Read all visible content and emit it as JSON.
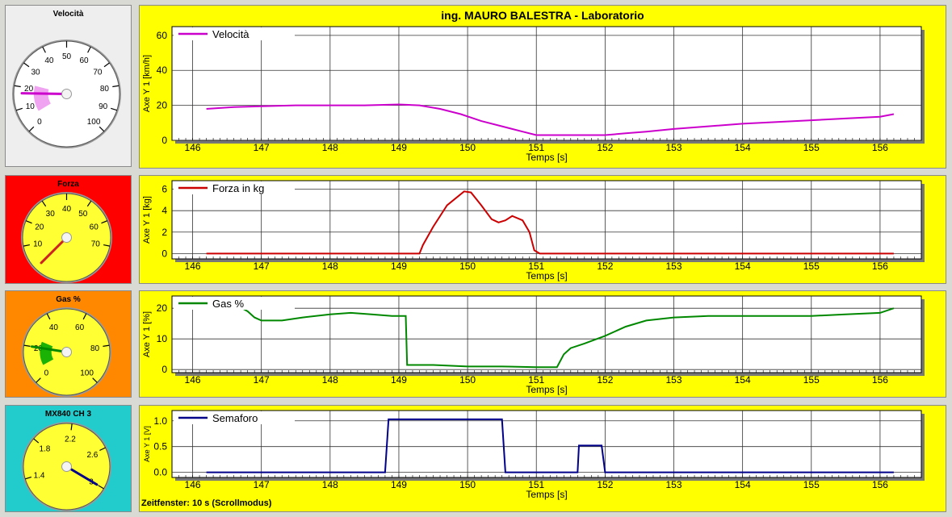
{
  "window": {
    "title": "ing. MAURO BALESTRA - Laboratorio",
    "footer": "Zeitfenster: 10 s (Scrollmodus)"
  },
  "gauges": [
    {
      "label": "Velocità",
      "bg": "#eeeeee",
      "face": "#ffffff",
      "ticks": [
        "0",
        "10",
        "20",
        "30",
        "40",
        "50",
        "60",
        "70",
        "80",
        "90",
        "100"
      ],
      "min": 0,
      "max": 100,
      "value": 17,
      "needle": "#cc00cc",
      "arc": "#ee99ee"
    },
    {
      "label": "Forza",
      "bg": "#ff0000",
      "face": "#ffff33",
      "ticks": [
        "10",
        "20",
        "30",
        "40",
        "50",
        "60",
        "70"
      ],
      "min": 0,
      "max": 80,
      "value": 0,
      "needle": "#cc2222",
      "arc": ""
    },
    {
      "label": "Gas %",
      "bg": "#ff8800",
      "face": "#ffff33",
      "ticks": [
        "0",
        "20",
        "40",
        "60",
        "80",
        "100"
      ],
      "min": 0,
      "max": 100,
      "value": 20,
      "needle": "#008800",
      "arc": "#00aa00"
    },
    {
      "label": "MX840 CH 3",
      "bg": "#22cccc",
      "face": "#ffff33",
      "ticks": [
        "1.4",
        "1.8",
        "2.2",
        "2.6",
        "3"
      ],
      "min": 1.2,
      "max": 3.1,
      "value": 3.0,
      "needle": "#000088",
      "arc": ""
    }
  ],
  "chart_data": [
    {
      "type": "line",
      "series": [
        {
          "name": "Velocità",
          "color": "#cc00cc",
          "points": [
            [
              146.2,
              18
            ],
            [
              146.6,
              19
            ],
            [
              147,
              19.5
            ],
            [
              147.5,
              20
            ],
            [
              148,
              20
            ],
            [
              148.5,
              20
            ],
            [
              149,
              20.5
            ],
            [
              149.3,
              20
            ],
            [
              149.6,
              18
            ],
            [
              149.9,
              15
            ],
            [
              150.2,
              11
            ],
            [
              150.5,
              8
            ],
            [
              150.8,
              5
            ],
            [
              151,
              3
            ],
            [
              151.5,
              3
            ],
            [
              152,
              3
            ],
            [
              152.3,
              4
            ],
            [
              152.6,
              5
            ],
            [
              153,
              6.5
            ],
            [
              153.5,
              8
            ],
            [
              154,
              9.5
            ],
            [
              154.5,
              10.5
            ],
            [
              155,
              11.5
            ],
            [
              155.5,
              12.5
            ],
            [
              156,
              13.5
            ],
            [
              156.2,
              15
            ]
          ]
        }
      ],
      "xlabel": "Temps [s]",
      "ylabel": "Axe Y 1 [km/h]",
      "xlim": [
        145.7,
        156.6
      ],
      "ylim": [
        0,
        65
      ],
      "xticks": [
        146,
        147,
        148,
        149,
        150,
        151,
        152,
        153,
        154,
        155,
        156
      ],
      "yticks": [
        0,
        20,
        40,
        60
      ]
    },
    {
      "type": "line",
      "series": [
        {
          "name": "Forza in kg",
          "color": "#cc0000",
          "points": [
            [
              146.2,
              0
            ],
            [
              149.3,
              0
            ],
            [
              149.35,
              0.8
            ],
            [
              149.5,
              2.5
            ],
            [
              149.7,
              4.5
            ],
            [
              149.95,
              5.8
            ],
            [
              150.05,
              5.7
            ],
            [
              150.2,
              4.5
            ],
            [
              150.35,
              3.2
            ],
            [
              150.45,
              2.9
            ],
            [
              150.55,
              3.1
            ],
            [
              150.65,
              3.5
            ],
            [
              150.8,
              3.1
            ],
            [
              150.9,
              2
            ],
            [
              150.97,
              0.3
            ],
            [
              151.05,
              0
            ],
            [
              156.2,
              0
            ]
          ]
        }
      ],
      "xlabel": "Temps [s]",
      "ylabel": "Axe Y 1 [kg]",
      "xlim": [
        145.7,
        156.6
      ],
      "ylim": [
        -0.5,
        6.8
      ],
      "xticks": [
        146,
        147,
        148,
        149,
        150,
        151,
        152,
        153,
        154,
        155,
        156
      ],
      "yticks": [
        0,
        2,
        4,
        6
      ]
    },
    {
      "type": "line",
      "series": [
        {
          "name": "Gas %",
          "color": "#008800",
          "points": [
            [
              146.2,
              21.5
            ],
            [
              146.6,
              21.5
            ],
            [
              146.8,
              19
            ],
            [
              146.9,
              17
            ],
            [
              147,
              16
            ],
            [
              147.3,
              16
            ],
            [
              147.6,
              17
            ],
            [
              148,
              18
            ],
            [
              148.3,
              18.5
            ],
            [
              148.6,
              18
            ],
            [
              148.9,
              17.5
            ],
            [
              149.1,
              17.5
            ],
            [
              149.12,
              1.5
            ],
            [
              149.5,
              1.5
            ],
            [
              150,
              1
            ],
            [
              150.5,
              1
            ],
            [
              151,
              0.8
            ],
            [
              151.3,
              0.8
            ],
            [
              151.4,
              5
            ],
            [
              151.5,
              7
            ],
            [
              151.7,
              8.5
            ],
            [
              152,
              11
            ],
            [
              152.3,
              14
            ],
            [
              152.6,
              16
            ],
            [
              153,
              17
            ],
            [
              153.5,
              17.5
            ],
            [
              154,
              17.5
            ],
            [
              154.5,
              17.5
            ],
            [
              155,
              17.5
            ],
            [
              155.5,
              18
            ],
            [
              156,
              18.5
            ],
            [
              156.2,
              20
            ]
          ]
        }
      ],
      "xlabel": "Temps [s]",
      "ylabel": "Axe Y 1 [%]",
      "xlim": [
        145.7,
        156.6
      ],
      "ylim": [
        -1,
        24
      ],
      "xticks": [
        146,
        147,
        148,
        149,
        150,
        151,
        152,
        153,
        154,
        155,
        156
      ],
      "yticks": [
        0,
        10,
        20
      ]
    },
    {
      "type": "line",
      "series": [
        {
          "name": "Semaforo",
          "color": "#00008b",
          "points": [
            [
              146.2,
              0
            ],
            [
              148.8,
              0
            ],
            [
              148.85,
              1.03
            ],
            [
              150.5,
              1.03
            ],
            [
              150.55,
              0
            ],
            [
              151.6,
              0
            ],
            [
              151.62,
              0.52
            ],
            [
              151.95,
              0.52
            ],
            [
              152,
              0
            ],
            [
              156.2,
              0
            ]
          ]
        }
      ],
      "xlabel": "Temps [s]",
      "ylabel": "Axe Y 1 [V]",
      "xlim": [
        145.7,
        156.6
      ],
      "ylim": [
        -0.1,
        1.2
      ],
      "xticks": [
        146,
        147,
        148,
        149,
        150,
        151,
        152,
        153,
        154,
        155,
        156
      ],
      "yticks": [
        0.0,
        0.5,
        1.0
      ]
    }
  ]
}
